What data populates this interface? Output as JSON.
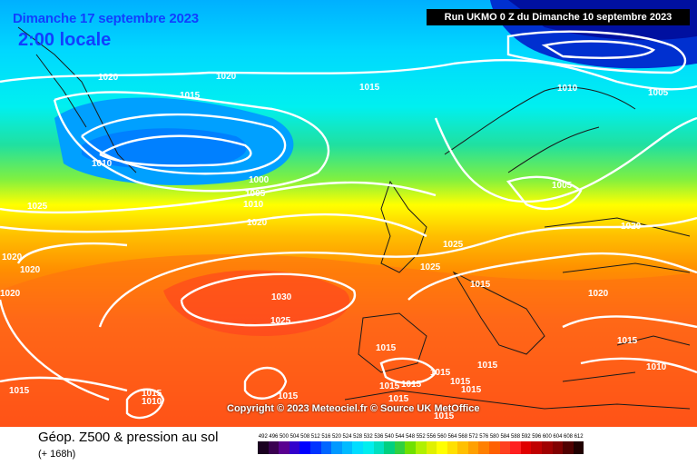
{
  "header": {
    "date": "Dimanche 17 septembre 2023",
    "time": "2:00 locale",
    "run": "Run UKMO 0 Z du Dimanche 10 septembre 2023"
  },
  "copyright": "Copyright © 2023 Meteociel.fr © Source UK MetOffice",
  "footer": {
    "title": "Géop. Z500 & pression au sol",
    "subtitle": "(+ 168h)"
  },
  "legend": {
    "ticks": [
      "492",
      "496",
      "500",
      "504",
      "508",
      "512",
      "516",
      "520",
      "524",
      "528",
      "532",
      "536",
      "540",
      "544",
      "548",
      "552",
      "556",
      "560",
      "564",
      "568",
      "572",
      "576",
      "580",
      "584",
      "588",
      "592",
      "596",
      "600",
      "604",
      "608",
      "612"
    ],
    "colors": [
      "#1a0020",
      "#3a0050",
      "#5a0090",
      "#3300cc",
      "#0000ff",
      "#0033ff",
      "#0066ff",
      "#0099ff",
      "#00bbff",
      "#00ddff",
      "#00eeee",
      "#00e0c0",
      "#00d080",
      "#30d040",
      "#70e000",
      "#b0f000",
      "#e0f000",
      "#ffff00",
      "#ffe000",
      "#ffc000",
      "#ffa000",
      "#ff8000",
      "#ff6000",
      "#ff4020",
      "#ff2020",
      "#e00000",
      "#c00000",
      "#a00000",
      "#800000",
      "#500000",
      "#200000"
    ]
  },
  "pressure_labels": [
    "1020",
    "1020",
    "1015",
    "1015",
    "1010",
    "1005",
    "1010",
    "1000",
    "1005",
    "1010",
    "1020",
    "1025",
    "1005",
    "1020",
    "1025",
    "1020",
    "1020",
    "1025",
    "1020",
    "1030",
    "1025",
    "1015",
    "1020",
    "1015",
    "1015",
    "1010",
    "1015",
    "1015",
    "1015",
    "1015",
    "1015",
    "1015",
    "1015",
    "1015",
    "1015",
    "1010",
    "1015",
    "1015"
  ],
  "colors": {
    "header_blue": "#1040ff",
    "isobar": "#ffffff"
  }
}
